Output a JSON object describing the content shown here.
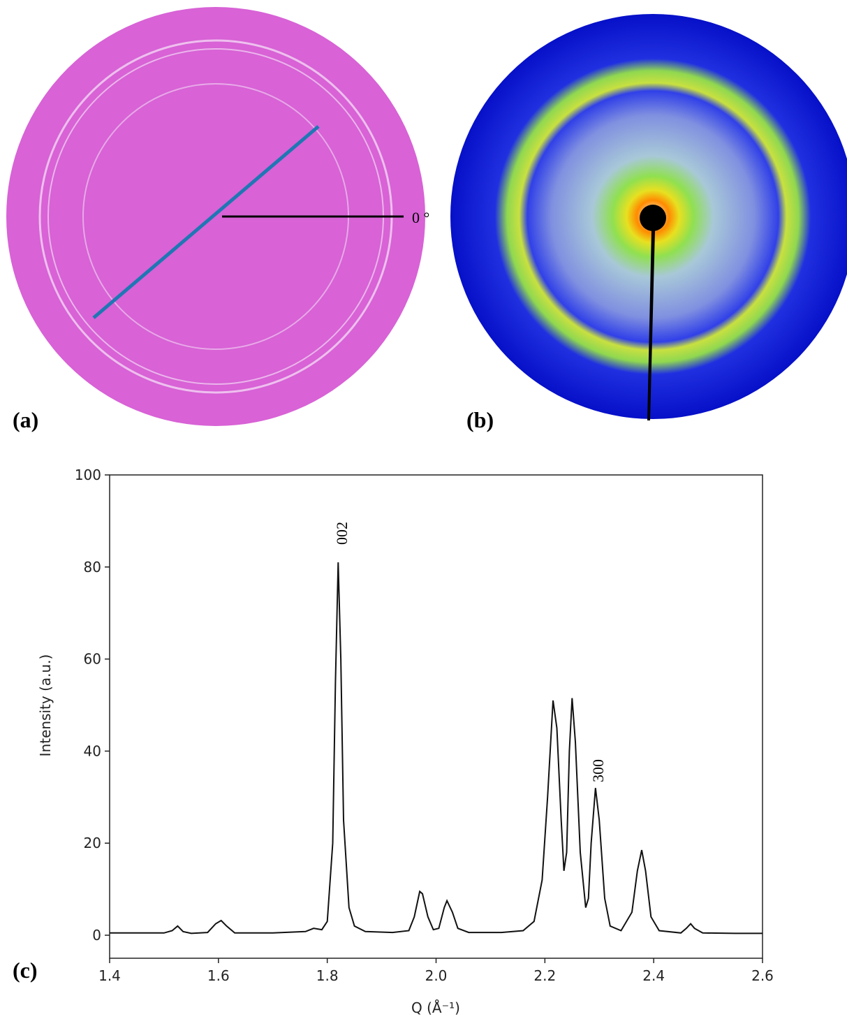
{
  "panel_labels": [
    "(a)",
    "(b)",
    "(c)"
  ],
  "angle_label": "0 °",
  "chart_data": {
    "type": "line",
    "xlabel": "Q (Å⁻¹)",
    "ylabel": "Intensity (a.u.)",
    "color": "#111111",
    "annotations": [
      "002",
      "300"
    ],
    "x": [
      1.4,
      1.45,
      1.5,
      1.515,
      1.525,
      1.535,
      1.55,
      1.58,
      1.595,
      1.605,
      1.615,
      1.63,
      1.7,
      1.76,
      1.775,
      1.79,
      1.8,
      1.81,
      1.815,
      1.82,
      1.825,
      1.83,
      1.84,
      1.85,
      1.87,
      1.92,
      1.95,
      1.96,
      1.97,
      1.975,
      1.985,
      1.995,
      2.005,
      2.015,
      2.02,
      2.03,
      2.04,
      2.06,
      2.12,
      2.16,
      2.18,
      2.195,
      2.205,
      2.215,
      2.222,
      2.23,
      2.235,
      2.24,
      2.245,
      2.25,
      2.256,
      2.265,
      2.275,
      2.28,
      2.285,
      2.293,
      2.3,
      2.31,
      2.32,
      2.34,
      2.36,
      2.37,
      2.378,
      2.385,
      2.395,
      2.41,
      2.45,
      2.46,
      2.468,
      2.475,
      2.49,
      2.55,
      2.6
    ],
    "values": [
      0.5,
      0.5,
      0.5,
      1,
      2,
      0.8,
      0.4,
      0.6,
      2.5,
      3.2,
      2,
      0.5,
      0.5,
      0.8,
      1.5,
      1.2,
      3,
      20,
      55,
      81,
      60,
      25,
      6,
      2,
      0.8,
      0.6,
      1,
      4,
      9.5,
      9,
      4,
      1.2,
      1.5,
      6,
      7.5,
      5,
      1.5,
      0.6,
      0.6,
      1,
      3,
      12,
      30,
      51,
      45,
      25,
      14,
      18,
      40,
      51.5,
      42,
      18,
      6,
      8,
      20,
      32,
      25,
      8,
      2,
      1,
      5,
      14,
      18.5,
      14,
      4,
      1,
      0.5,
      1.5,
      2.5,
      1.5,
      0.5,
      0.4,
      0.4
    ],
    "xlim": [
      1.4,
      2.6
    ],
    "ylim": [
      -5,
      100
    ],
    "xticks": [
      1.4,
      1.6,
      1.8,
      {
        "value": 2,
        "label": "2.0"
      },
      2.2,
      2.4,
      2.6
    ],
    "yticks": [
      0,
      20,
      40,
      60,
      80,
      100
    ]
  }
}
